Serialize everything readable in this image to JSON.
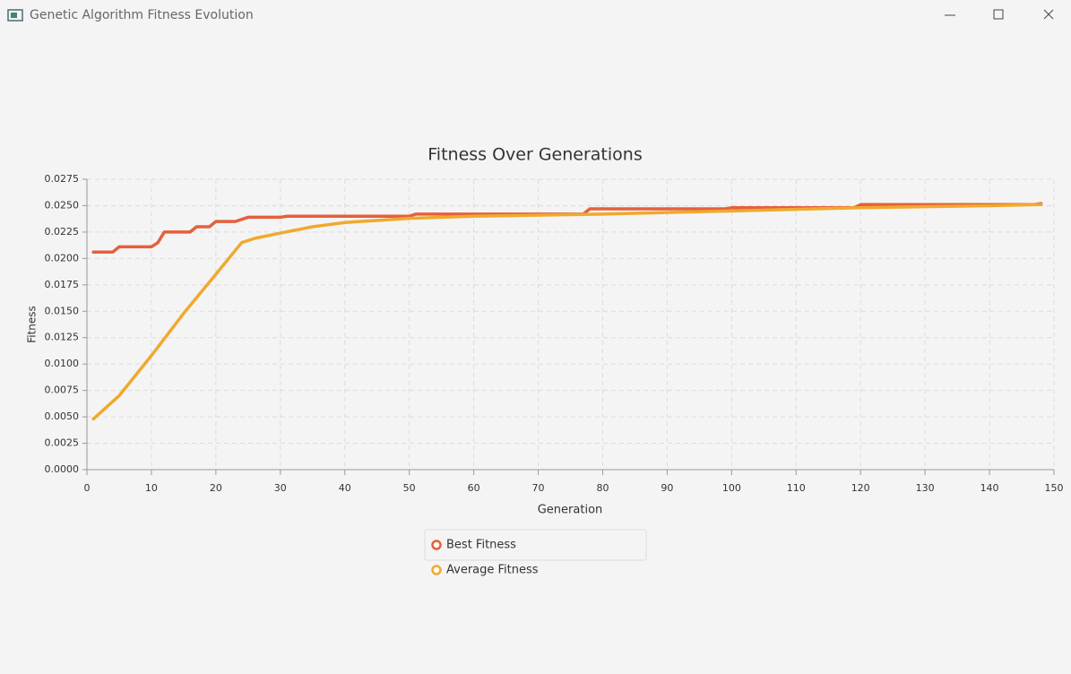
{
  "window": {
    "title": "Genetic Algorithm Fitness Evolution"
  },
  "chart_data": {
    "type": "line",
    "title": "Fitness Over Generations",
    "x_label": "Generation",
    "y_label": "Fitness",
    "xlim": [
      0,
      150
    ],
    "xticks": [
      0,
      10,
      20,
      30,
      40,
      50,
      60,
      70,
      80,
      90,
      100,
      110,
      120,
      130,
      140,
      150
    ],
    "ylim": [
      0,
      0.0275
    ],
    "yticks": [
      {
        "value": 0,
        "label": "0.0000"
      },
      0.0025,
      {
        "value": 0.005,
        "label": "0.0050"
      },
      0.0075,
      {
        "value": 0.01,
        "label": "0.0100"
      },
      0.0125,
      {
        "value": 0.015,
        "label": "0.0150"
      },
      0.0175,
      {
        "value": 0.02,
        "label": "0.0200"
      },
      0.0225,
      {
        "value": 0.025,
        "label": "0.0250"
      },
      0.0275
    ],
    "grid": true,
    "series": [
      {
        "name": "Best Fitness",
        "color": "#e4603c",
        "x": [
          1,
          4,
          5,
          10,
          11,
          12,
          16,
          17,
          19,
          20,
          23,
          25,
          30,
          31,
          50,
          51,
          77,
          78,
          99,
          100,
          119,
          120,
          147,
          148
        ],
        "values": [
          0.0206,
          0.0206,
          0.0211,
          0.0211,
          0.0215,
          0.0225,
          0.0225,
          0.023,
          0.023,
          0.0235,
          0.0235,
          0.0239,
          0.0239,
          0.024,
          0.024,
          0.0242,
          0.0242,
          0.0247,
          0.0247,
          0.0248,
          0.0248,
          0.0251,
          0.0251,
          0.0252
        ]
      },
      {
        "name": "Average Fitness",
        "color": "#f0a92e",
        "x": [
          1,
          5,
          10,
          15,
          20,
          24,
          26,
          30,
          35,
          40,
          50,
          60,
          80,
          100,
          120,
          140,
          148
        ],
        "values": [
          0.0048,
          0.007,
          0.0108,
          0.0148,
          0.0185,
          0.0215,
          0.0219,
          0.0224,
          0.023,
          0.0234,
          0.0238,
          0.024,
          0.0242,
          0.0245,
          0.0248,
          0.025,
          0.0251
        ]
      }
    ]
  }
}
